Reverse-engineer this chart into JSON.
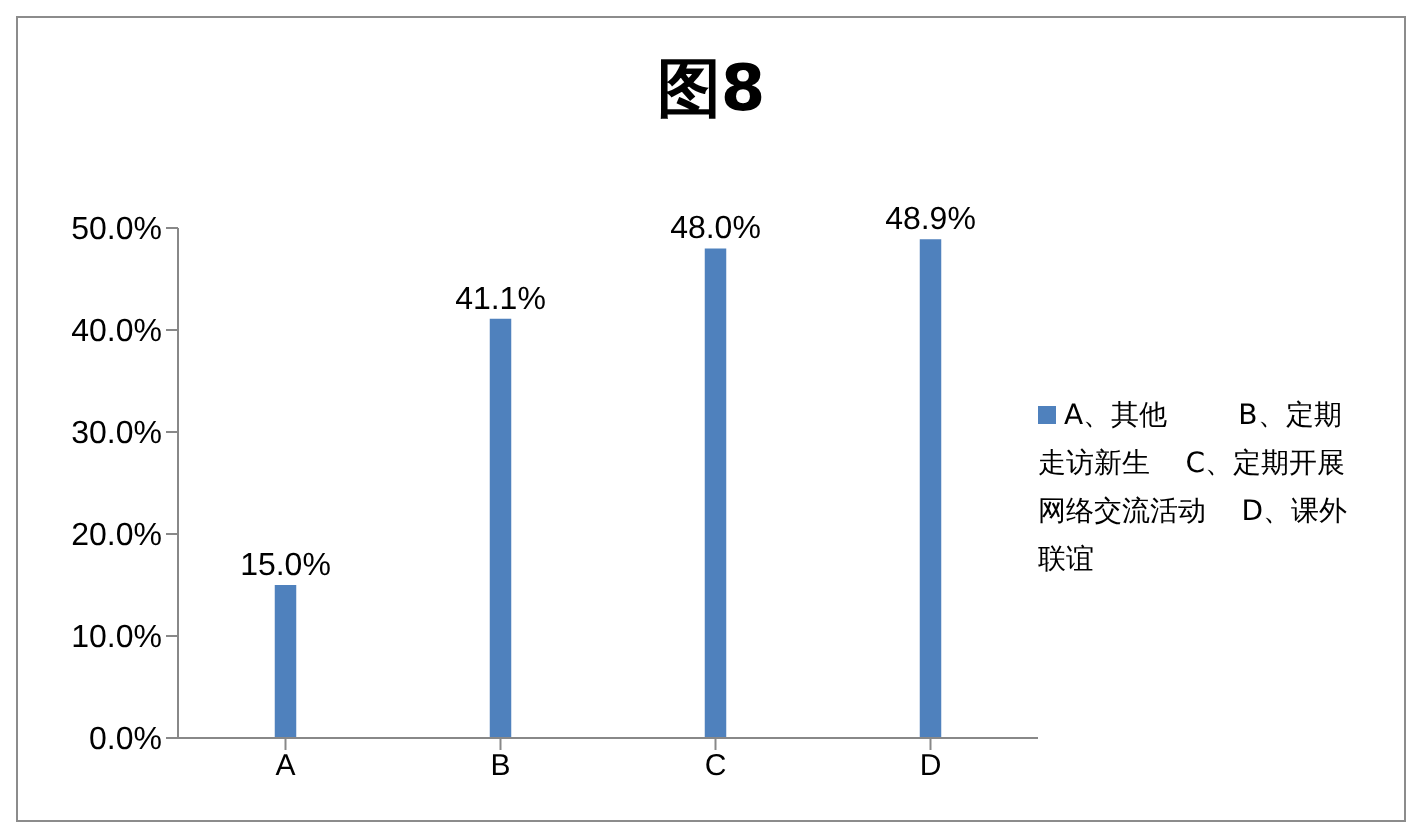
{
  "chart_data": {
    "type": "bar",
    "title": "图8",
    "categories": [
      "A",
      "B",
      "C",
      "D"
    ],
    "series": [
      {
        "name": "A、其他        B、定期走访新生    C、定期开展网络交流活动    D、课外联谊",
        "color": "#4f81bd",
        "values": [
          15.0,
          41.1,
          48.0,
          48.9
        ],
        "value_labels": [
          "15.0%",
          "41.1%",
          "48.0%",
          "48.9%"
        ]
      }
    ],
    "ylim": [
      0,
      50
    ],
    "yticks": [
      {
        "value": 0,
        "label": "0.0%"
      },
      {
        "value": 10,
        "label": "10.0%"
      },
      {
        "value": 20,
        "label": "20.0%"
      },
      {
        "value": 30,
        "label": "30.0%"
      },
      {
        "value": 40,
        "label": "40.0%"
      },
      {
        "value": 50,
        "label": "50.0%"
      }
    ],
    "grid": false,
    "legend": "right"
  }
}
